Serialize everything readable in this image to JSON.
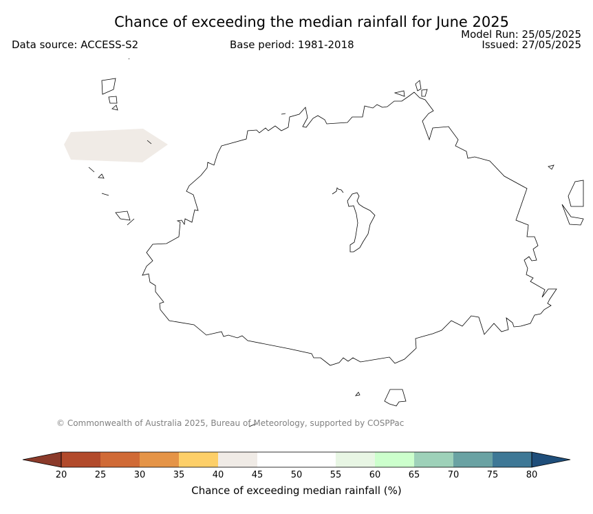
{
  "header": {
    "title": "Chance of exceeding the median rainfall for June 2025",
    "data_source": "Data source: ACCESS-S2",
    "base_period": "Base period: 1981-2018",
    "model_run": "Model Run: 25/05/2025",
    "issued": "Issued: 27/05/2025"
  },
  "copyright": "© Commonwealth of Australia 2025, Bureau of Meteorology, supported by COSPPac",
  "colorbar": {
    "label": "Chance of exceeding median rainfall (%)",
    "ticks": [
      "20",
      "25",
      "30",
      "35",
      "40",
      "45",
      "50",
      "55",
      "60",
      "65",
      "70",
      "75",
      "80"
    ],
    "under_color": "#8b3a2a",
    "over_color": "#1f4e7a",
    "bins": [
      {
        "range": "20-25",
        "color": "#b24a2b"
      },
      {
        "range": "25-30",
        "color": "#d06a36"
      },
      {
        "range": "30-35",
        "color": "#e59447"
      },
      {
        "range": "35-40",
        "color": "#fdcf68"
      },
      {
        "range": "40-45",
        "color": "#f0ebe6"
      },
      {
        "range": "45-50",
        "color": "#ffffff"
      },
      {
        "range": "50-55",
        "color": "#ffffff"
      },
      {
        "range": "55-60",
        "color": "#e8f6e4"
      },
      {
        "range": "60-65",
        "color": "#ccffcc"
      },
      {
        "range": "65-70",
        "color": "#9ed1b9"
      },
      {
        "range": "70-75",
        "color": "#6aa2a3"
      },
      {
        "range": "75-80",
        "color": "#3e7896"
      }
    ]
  },
  "map": {
    "land_fill": "#ffffff",
    "coastline_color": "#000000",
    "shaded_area_category": "40-45",
    "shaded_area_color": "#f0ebe6"
  }
}
